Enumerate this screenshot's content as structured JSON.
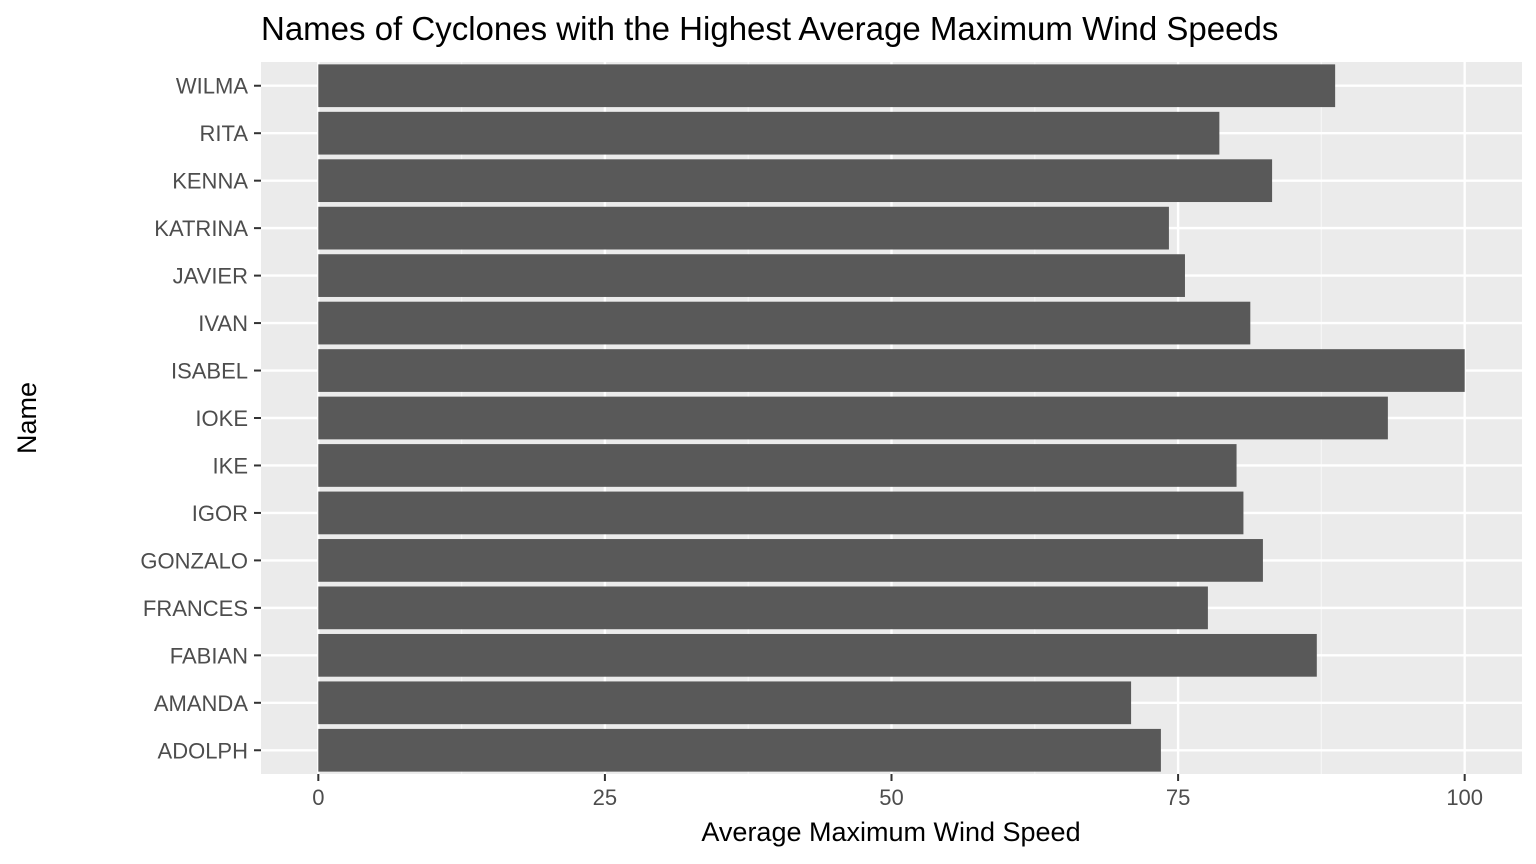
{
  "chart_data": {
    "type": "bar",
    "orientation": "horizontal",
    "title": "Names of Cyclones with the Highest Average Maximum Wind Speeds",
    "xlabel": "Average Maximum Wind Speed",
    "ylabel": "Name",
    "categories": [
      "WILMA",
      "RITA",
      "KENNA",
      "KATRINA",
      "JAVIER",
      "IVAN",
      "ISABEL",
      "IOKE",
      "IKE",
      "IGOR",
      "GONZALO",
      "FRANCES",
      "FABIAN",
      "AMANDA",
      "ADOLPH"
    ],
    "values": [
      88.7,
      78.6,
      83.2,
      74.2,
      75.6,
      81.3,
      100.0,
      93.3,
      80.1,
      80.7,
      82.4,
      77.6,
      87.1,
      70.9,
      73.5
    ],
    "xlim": [
      -5,
      105
    ],
    "xticks": [
      0,
      25,
      50,
      75,
      100
    ],
    "xtick_labels": [
      "0",
      "25",
      "50",
      "75",
      "100"
    ],
    "grid": true,
    "legend": "none",
    "colors": {
      "bar": "#595959",
      "panel": "#ebebeb",
      "grid_major": "#ffffff",
      "grid_minor": "#f5f5f5",
      "tick_text": "#4d4d4d",
      "title_text": "#000000"
    }
  }
}
